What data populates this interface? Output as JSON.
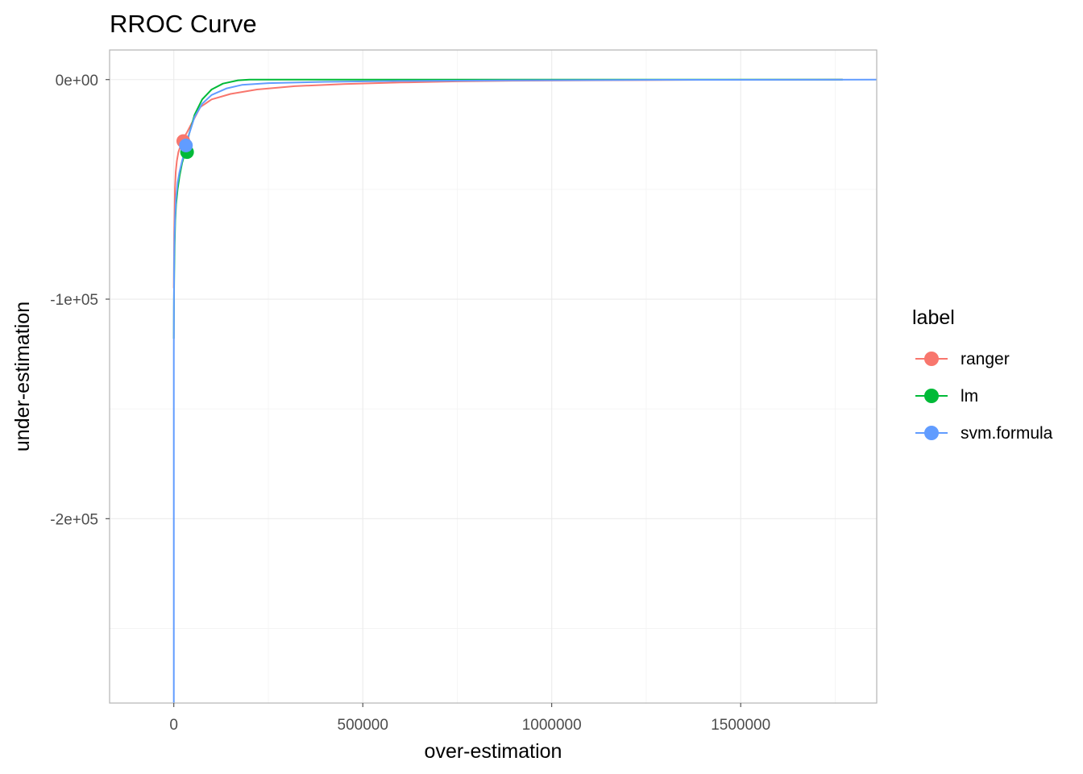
{
  "chart_data": {
    "type": "line",
    "title": "RROC Curve",
    "xlabel": "over-estimation",
    "ylabel": "under-estimation",
    "xlim": [
      -170000,
      1860000
    ],
    "ylim": [
      -284000,
      13500
    ],
    "x_ticks": [
      0,
      500000,
      1000000,
      1500000
    ],
    "x_tick_labels": [
      "0",
      "500000",
      "1000000",
      "1500000"
    ],
    "x_minor_ticks": [
      250000,
      750000,
      1250000,
      1750000
    ],
    "y_ticks": [
      0,
      -100000,
      -200000
    ],
    "y_tick_labels": [
      "0e+00",
      "-1e+05",
      "-2e+05"
    ],
    "y_minor_ticks": [
      -50000,
      -150000,
      -250000
    ],
    "grid": true,
    "legend": {
      "title": "label",
      "position": "right",
      "entries": [
        "ranger",
        "lm",
        "svm.formula"
      ]
    },
    "series": [
      {
        "name": "ranger",
        "color": "#F8766D",
        "x": [
          0,
          500,
          1000,
          2000,
          3000,
          5000,
          8000,
          12000,
          18000,
          25000,
          35000,
          50000,
          70000,
          100000,
          150000,
          220000,
          320000,
          450000,
          600000,
          750000,
          900000,
          1100000,
          1400000,
          1770000
        ],
        "y": [
          -95000,
          -80000,
          -70000,
          -60000,
          -50000,
          -42000,
          -37000,
          -33000,
          -30000,
          -27000,
          -24000,
          -19000,
          -12500,
          -9000,
          -6500,
          -4500,
          -3000,
          -2000,
          -1300,
          -800,
          -500,
          -300,
          -100,
          0
        ],
        "point": {
          "x": 25000,
          "y": -28000
        }
      },
      {
        "name": "lm",
        "color": "#00BA38",
        "x": [
          0,
          400,
          1000,
          2000,
          3500,
          6000,
          10000,
          15000,
          22000,
          30000,
          40000,
          55000,
          75000,
          100000,
          130000,
          170000,
          200000,
          300000,
          500000,
          900000,
          1400000,
          1770000
        ],
        "y": [
          -118000,
          -100000,
          -88000,
          -76000,
          -65000,
          -57000,
          -50000,
          -44000,
          -38000,
          -33000,
          -25000,
          -16000,
          -9000,
          -4500,
          -1800,
          -300,
          0,
          0,
          0,
          0,
          0,
          0
        ],
        "point": {
          "x": 35000,
          "y": -33000
        }
      },
      {
        "name": "svm.formula",
        "color": "#619CFF",
        "x": [
          0,
          0,
          200,
          500,
          1000,
          2000,
          3500,
          6000,
          10000,
          15000,
          22000,
          30000,
          40000,
          55000,
          75000,
          100000,
          140000,
          180000,
          250000,
          400000,
          600000,
          900000,
          1300000,
          1860000
        ],
        "y": [
          -284000,
          -125000,
          -105000,
          -92000,
          -80000,
          -70000,
          -62000,
          -54000,
          -47000,
          -42000,
          -37000,
          -32000,
          -25000,
          -17000,
          -11000,
          -7000,
          -4000,
          -2400,
          -1600,
          -1000,
          -600,
          -300,
          -100,
          0
        ],
        "point": {
          "x": 32000,
          "y": -30000
        }
      }
    ]
  }
}
